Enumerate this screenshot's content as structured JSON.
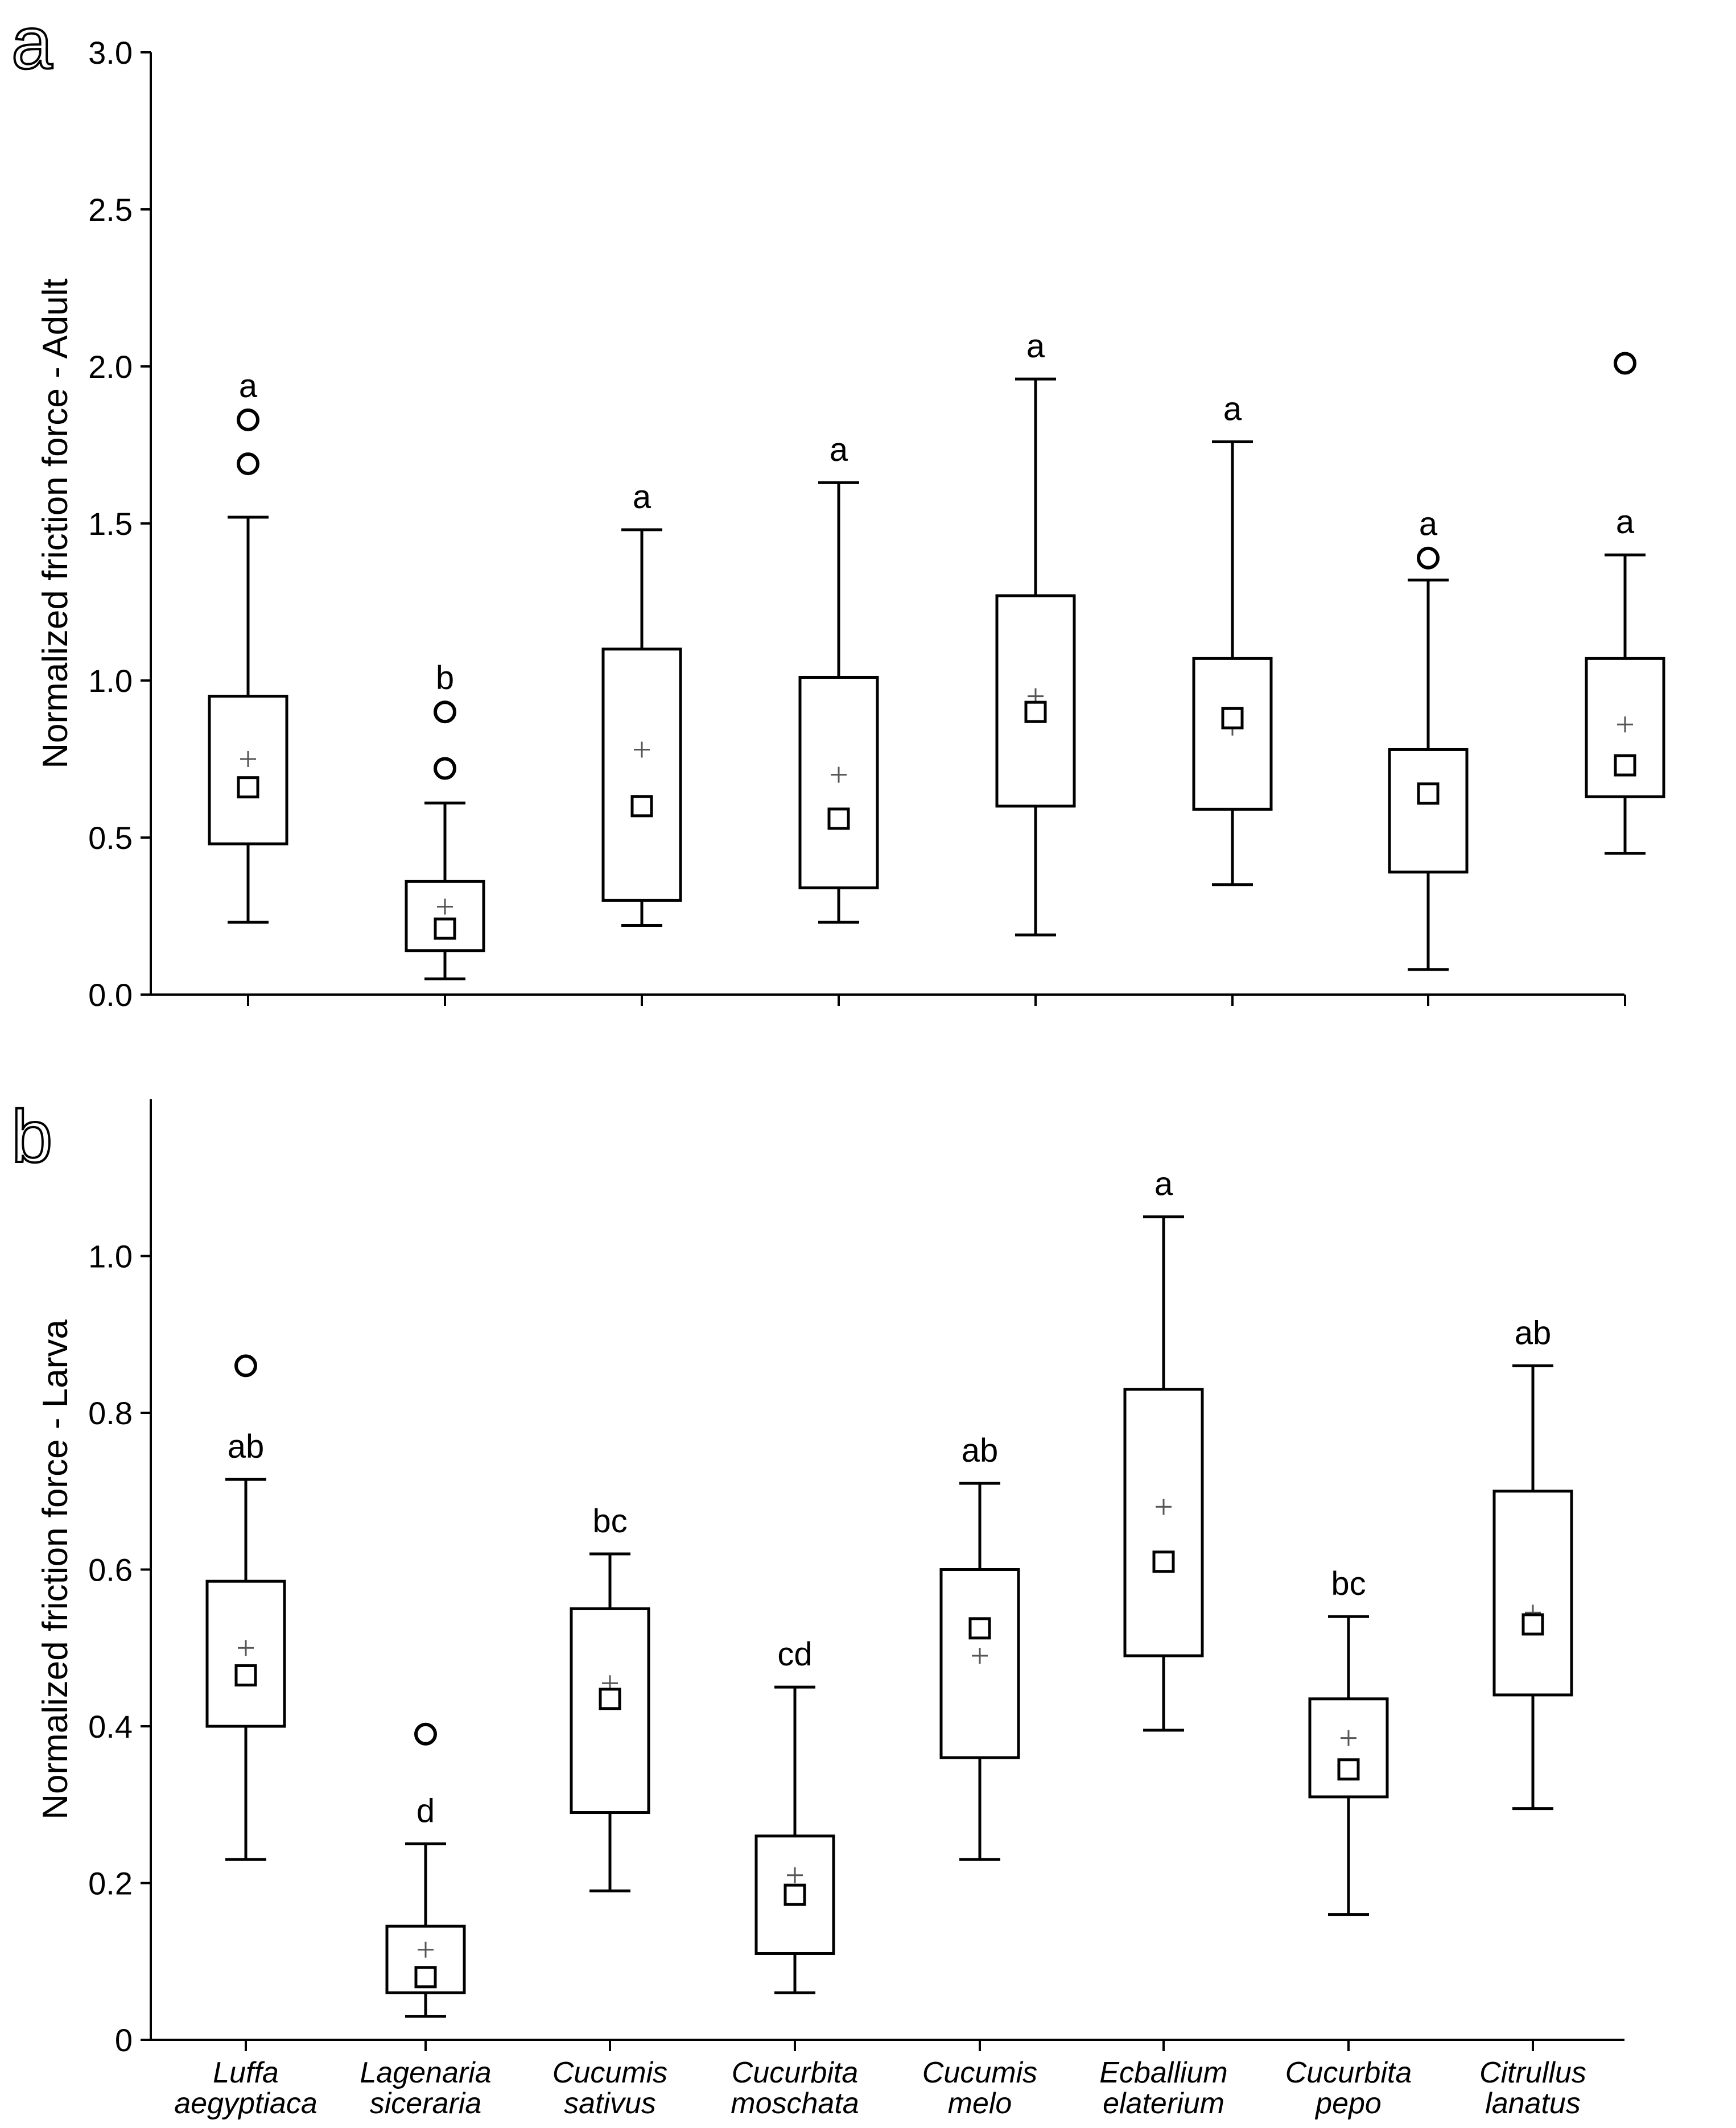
{
  "chart_data": [
    {
      "type": "boxplot",
      "panel_label": "a",
      "ylabel": "Normalized friction force - Adult",
      "ylim": [
        0,
        3.0
      ],
      "yticks": [
        0.0,
        0.5,
        1.0,
        1.5,
        2.0,
        2.5,
        3.0
      ],
      "ytick_labels": [
        "0.0",
        "0.5",
        "1.0",
        "1.5",
        "2.0",
        "2.5",
        "3.0"
      ],
      "categories": [
        "Luffa aegyptiaca",
        "Lagenaria siceraria",
        "Cucumis sativus",
        "Cucurbita moschata",
        "Cucumis melo",
        "Ecballium elaterium",
        "Cucurbita pepo",
        "Citrullus lanatus"
      ],
      "boxes": [
        {
          "whisker_low": 0.23,
          "q1": 0.48,
          "median": 0.66,
          "mean": 0.75,
          "q3": 0.95,
          "whisker_high": 1.52,
          "outliers": [
            1.69,
            1.83
          ],
          "letter": "a"
        },
        {
          "whisker_low": 0.05,
          "q1": 0.14,
          "median": 0.21,
          "mean": 0.28,
          "q3": 0.36,
          "whisker_high": 0.61,
          "outliers": [
            0.72,
            0.9
          ],
          "letter": "b"
        },
        {
          "whisker_low": 0.22,
          "q1": 0.3,
          "median": 0.6,
          "mean": 0.78,
          "q3": 1.1,
          "whisker_high": 1.48,
          "outliers": [],
          "letter": "a"
        },
        {
          "whisker_low": 0.23,
          "q1": 0.34,
          "median": 0.56,
          "mean": 0.7,
          "q3": 1.01,
          "whisker_high": 1.63,
          "outliers": [],
          "letter": "a"
        },
        {
          "whisker_low": 0.19,
          "q1": 0.6,
          "median": 0.9,
          "mean": 0.95,
          "q3": 1.27,
          "whisker_high": 1.96,
          "outliers": [],
          "letter": "a"
        },
        {
          "whisker_low": 0.35,
          "q1": 0.59,
          "median": 0.88,
          "mean": 0.85,
          "q3": 1.07,
          "whisker_high": 1.76,
          "outliers": [],
          "letter": "a"
        },
        {
          "whisker_low": 0.08,
          "q1": 0.39,
          "median": 0.64,
          "mean": 0.64,
          "q3": 0.78,
          "whisker_high": 1.32,
          "outliers": [
            1.39
          ],
          "letter": "a"
        },
        {
          "whisker_low": 0.45,
          "q1": 0.63,
          "median": 0.73,
          "mean": 0.86,
          "q3": 1.07,
          "whisker_high": 1.4,
          "outliers": [
            2.01
          ],
          "letter": "a"
        }
      ]
    },
    {
      "type": "boxplot",
      "panel_label": "b",
      "ylabel": "Normalized friction force - Larva",
      "ylim": [
        0,
        1.2
      ],
      "yticks": [
        0,
        0.2,
        0.4,
        0.6,
        0.8,
        1.0
      ],
      "ytick_labels": [
        "0",
        "0.2",
        "0.4",
        "0.6",
        "0.8",
        "1.0"
      ],
      "categories": [
        "Luffa aegyptiaca",
        "Lagenaria siceraria",
        "Cucumis sativus",
        "Cucurbita moschata",
        "Cucumis melo",
        "Ecballium elaterium",
        "Cucurbita pepo",
        "Citrullus lanatus"
      ],
      "boxes": [
        {
          "whisker_low": 0.23,
          "q1": 0.4,
          "median": 0.465,
          "mean": 0.5,
          "q3": 0.585,
          "whisker_high": 0.715,
          "outliers": [
            0.86
          ],
          "letter": "ab"
        },
        {
          "whisker_low": 0.03,
          "q1": 0.06,
          "median": 0.08,
          "mean": 0.115,
          "q3": 0.145,
          "whisker_high": 0.25,
          "outliers": [
            0.39
          ],
          "letter": "d"
        },
        {
          "whisker_low": 0.19,
          "q1": 0.29,
          "median": 0.435,
          "mean": 0.455,
          "q3": 0.55,
          "whisker_high": 0.62,
          "outliers": [],
          "letter": "bc"
        },
        {
          "whisker_low": 0.06,
          "q1": 0.11,
          "median": 0.185,
          "mean": 0.21,
          "q3": 0.26,
          "whisker_high": 0.45,
          "outliers": [],
          "letter": "cd"
        },
        {
          "whisker_low": 0.23,
          "q1": 0.36,
          "median": 0.525,
          "mean": 0.49,
          "q3": 0.6,
          "whisker_high": 0.71,
          "outliers": [],
          "letter": "ab"
        },
        {
          "whisker_low": 0.395,
          "q1": 0.49,
          "median": 0.61,
          "mean": 0.68,
          "q3": 0.83,
          "whisker_high": 1.05,
          "outliers": [],
          "letter": "a"
        },
        {
          "whisker_low": 0.16,
          "q1": 0.31,
          "median": 0.345,
          "mean": 0.385,
          "q3": 0.435,
          "whisker_high": 0.54,
          "outliers": [],
          "letter": "bc"
        },
        {
          "whisker_low": 0.295,
          "q1": 0.44,
          "median": 0.53,
          "mean": 0.545,
          "q3": 0.7,
          "whisker_high": 0.86,
          "outliers": [],
          "letter": "ab"
        }
      ]
    }
  ],
  "x_labels": [
    {
      "genus": "Luffa",
      "species": "aegyptiaca"
    },
    {
      "genus": "Lagenaria",
      "species": "siceraria"
    },
    {
      "genus": "Cucumis",
      "species": "sativus"
    },
    {
      "genus": "Cucurbita",
      "species": "moschata"
    },
    {
      "genus": "Cucumis",
      "species": "melo"
    },
    {
      "genus": "Ecballium",
      "species": "elaterium"
    },
    {
      "genus": "Cucurbita",
      "species": "pepo"
    },
    {
      "genus": "Citrullus",
      "species": "lanatus"
    }
  ]
}
